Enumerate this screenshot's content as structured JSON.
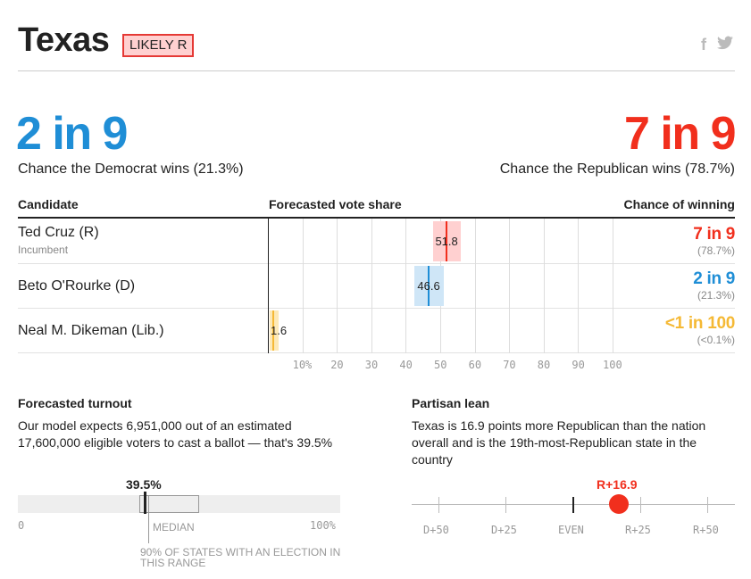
{
  "header": {
    "state": "Texas",
    "rating": "LIKELY R",
    "share_icons": {
      "facebook": "f",
      "twitter": "🐦"
    }
  },
  "summary": {
    "dem_odds": "2 in 9",
    "dem_caption": "Chance the Democrat wins (21.3%)",
    "rep_odds": "7 in 9",
    "rep_caption": "Chance the Republican wins (78.7%)"
  },
  "table": {
    "col_candidate": "Candidate",
    "col_forecast": "Forecasted vote share",
    "col_chance": "Chance of winning",
    "rows": [
      {
        "name": "Ted Cruz (R)",
        "note": "Incumbent",
        "share": 51.8,
        "share_label": "51.8",
        "range": [
          48,
          56
        ],
        "chance": "7 in 9",
        "chance_pct": "(78.7%)",
        "color": "#f12f1d",
        "band_color": "#ffd0d0"
      },
      {
        "name": "Beto O'Rourke (D)",
        "note": "",
        "share": 46.6,
        "share_label": "46.6",
        "range": [
          42.5,
          51
        ],
        "chance": "2 in 9",
        "chance_pct": "(21.3%)",
        "color": "#1f8ed6",
        "band_color": "#cfe6f7"
      },
      {
        "name": "Neal M. Dikeman (Lib.)",
        "note": "",
        "share": 1.6,
        "share_label": "1.6",
        "range": [
          0.5,
          3
        ],
        "chance": "<1 in 100",
        "chance_pct": "(<0.1%)",
        "color": "#f5b935",
        "band_color": "#fde9b7"
      }
    ],
    "axis_ticks": [
      "10%",
      "20",
      "30",
      "40",
      "50",
      "60",
      "70",
      "80",
      "90",
      "100"
    ]
  },
  "turnout": {
    "title": "Forecasted turnout",
    "text": "Our model expects 6,951,000 out of an estimated 17,600,000 eligible voters to cast a ballot — that's 39.5%",
    "value": "39.5%",
    "axis_min": "0",
    "axis_max": "100%",
    "median_label": "MEDIAN",
    "range_label": "90% OF STATES WITH AN ELECTION IN THIS RANGE"
  },
  "lean": {
    "title": "Partisan lean",
    "text": "Texas is 16.9 points more Republican than the nation overall and is the 19th-most-Republican state in the country",
    "value": "R+16.9",
    "labels": [
      "D+50",
      "D+25",
      "EVEN",
      "R+25",
      "R+50"
    ]
  }
}
